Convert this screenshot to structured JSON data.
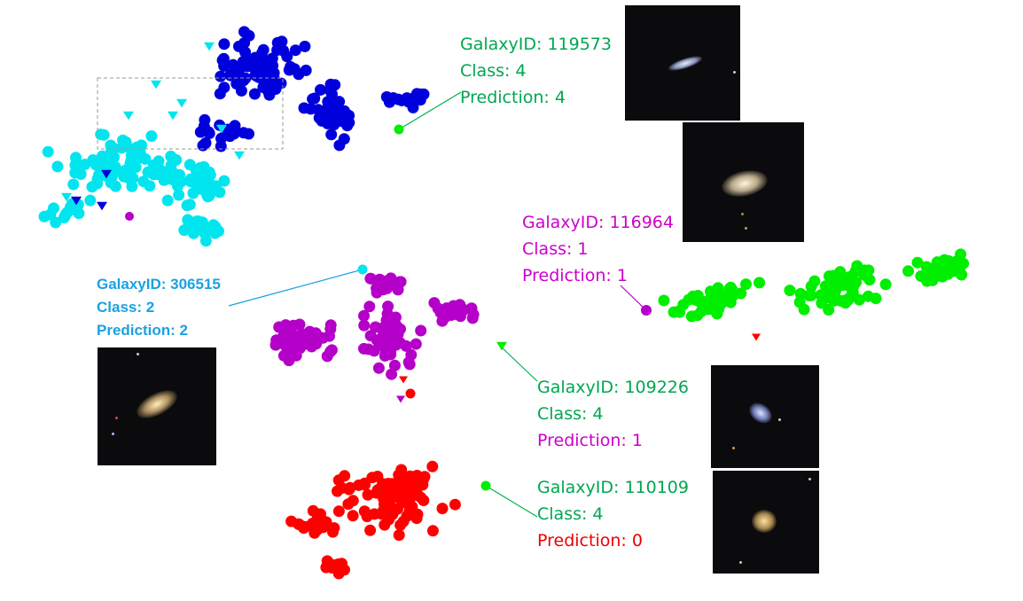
{
  "colors": {
    "blue": "#0000dd",
    "cyan": "#00e5ee",
    "magenta": "#b400c8",
    "green": "#00ee00",
    "red": "#ff0000",
    "label_green": "#00a651",
    "label_magenta": "#cc00cc",
    "label_cyan": "#1ba1e2",
    "label_red": "#ee0000",
    "leader_green": "#00b050",
    "leader_cyan": "#1ba1e2"
  },
  "chart_data": {
    "type": "scatter",
    "title": "",
    "xlabel": "",
    "ylabel": "",
    "grid": false,
    "legend": "none",
    "series": [
      {
        "color": "blue"
      },
      {
        "color": "cyan"
      },
      {
        "color": "magenta"
      },
      {
        "color": "green"
      },
      {
        "color": "red"
      }
    ],
    "annotations": [
      {
        "galaxy_id": "GalaxyID: 119573",
        "class_text": "Class: 4",
        "prediction_text": "Prediction: 4"
      },
      {
        "galaxy_id": "GalaxyID: 116964",
        "class_text": "Class: 1",
        "prediction_text": "Prediction: 1"
      },
      {
        "galaxy_id": "GalaxyID: 306515",
        "class_text": "Class: 2",
        "prediction_text": "Prediction: 2"
      },
      {
        "galaxy_id": "GalaxyID: 109226",
        "class_text": "Class: 4",
        "prediction_text": "Prediction: 1"
      },
      {
        "galaxy_id": "GalaxyID: 110109",
        "class_text": "Class: 4",
        "prediction_text": "Prediction: 0"
      }
    ]
  }
}
